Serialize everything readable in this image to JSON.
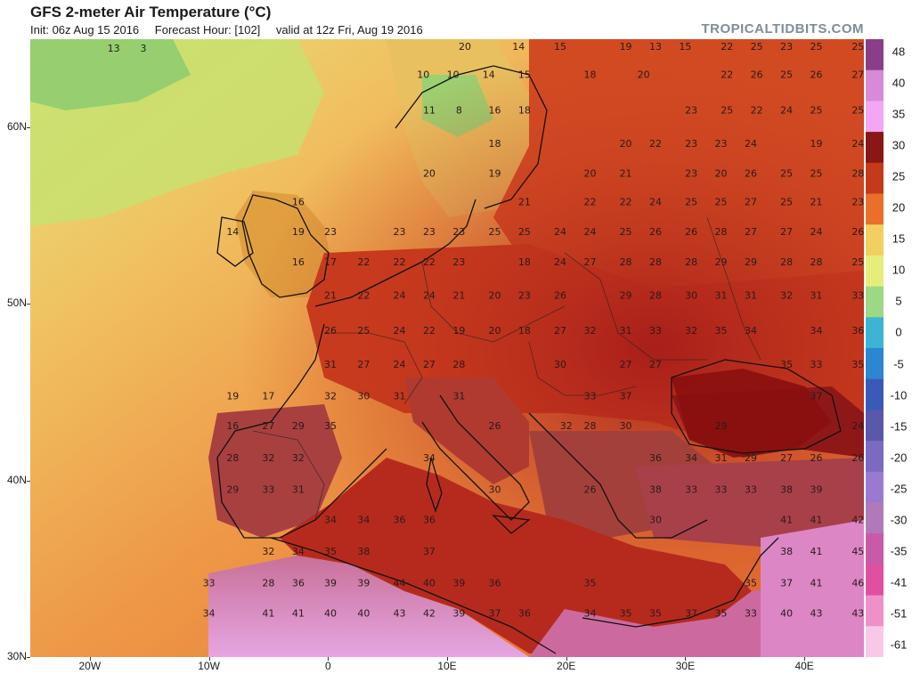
{
  "header": {
    "title": "GFS 2-meter Air Temperature (°C)",
    "init": "Init: 06z Aug 15 2016",
    "forecast_hour": "Forecast Hour: [102]",
    "valid": "valid at 12z Fri, Aug 19 2016",
    "brand": "TROPICALTIDBITS.COM"
  },
  "axes": {
    "lat_labels": [
      "60N",
      "50N",
      "40N",
      "30N"
    ],
    "lon_labels": [
      "20W",
      "10W",
      "0",
      "10E",
      "20E",
      "30E",
      "40E"
    ]
  },
  "colorbar": {
    "labels": [
      "48",
      "40",
      "35",
      "30",
      "25",
      "20",
      "15",
      "10",
      "5",
      "0",
      "-5",
      "-10",
      "-15",
      "-20",
      "-25",
      "-30",
      "-35",
      "-41",
      "-51",
      "-61"
    ],
    "colors": [
      "#8a3e8a",
      "#d88ad8",
      "#f4a6f4",
      "#8b1616",
      "#c43a1a",
      "#e8702a",
      "#f2d060",
      "#e6ee7a",
      "#9ed884",
      "#3cb4d4",
      "#2c86d0",
      "#3a5ab8",
      "#5a58a8",
      "#7a6ac0",
      "#9a7ad0",
      "#b07ab8",
      "#c85aa8",
      "#e050a0",
      "#f090c8",
      "#f8c8e8"
    ]
  },
  "map": {
    "temperature_labels": [
      {
        "t": "13",
        "lon": -18,
        "lat": 64.3
      },
      {
        "t": "3",
        "lon": -15.5,
        "lat": 64.3
      },
      {
        "t": "20",
        "lon": 11.5,
        "lat": 64.4
      },
      {
        "t": "14",
        "lon": 16,
        "lat": 64.4
      },
      {
        "t": "15",
        "lon": 19.5,
        "lat": 64.4
      },
      {
        "t": "19",
        "lon": 25,
        "lat": 64.4
      },
      {
        "t": "13",
        "lon": 27.5,
        "lat": 64.4
      },
      {
        "t": "15",
        "lon": 30,
        "lat": 64.4
      },
      {
        "t": "22",
        "lon": 33.5,
        "lat": 64.4
      },
      {
        "t": "25",
        "lon": 36,
        "lat": 64.4
      },
      {
        "t": "23",
        "lon": 38.5,
        "lat": 64.4
      },
      {
        "t": "25",
        "lon": 41,
        "lat": 64.4
      },
      {
        "t": "25",
        "lon": 44.5,
        "lat": 64.4
      },
      {
        "t": "10",
        "lon": 8,
        "lat": 62.8
      },
      {
        "t": "10",
        "lon": 10.5,
        "lat": 62.8
      },
      {
        "t": "14",
        "lon": 13.5,
        "lat": 62.8
      },
      {
        "t": "15",
        "lon": 16.5,
        "lat": 62.8
      },
      {
        "t": "18",
        "lon": 22,
        "lat": 62.8
      },
      {
        "t": "20",
        "lon": 26.5,
        "lat": 62.8
      },
      {
        "t": "22",
        "lon": 33.5,
        "lat": 62.8
      },
      {
        "t": "26",
        "lon": 36,
        "lat": 62.8
      },
      {
        "t": "25",
        "lon": 38.5,
        "lat": 62.8
      },
      {
        "t": "26",
        "lon": 41,
        "lat": 62.8
      },
      {
        "t": "27",
        "lon": 44.5,
        "lat": 62.8
      },
      {
        "t": "11",
        "lon": 8.5,
        "lat": 60.8
      },
      {
        "t": "8",
        "lon": 11,
        "lat": 60.8
      },
      {
        "t": "16",
        "lon": 14,
        "lat": 60.8
      },
      {
        "t": "18",
        "lon": 16.5,
        "lat": 60.8
      },
      {
        "t": "23",
        "lon": 30.5,
        "lat": 60.8
      },
      {
        "t": "25",
        "lon": 33.5,
        "lat": 60.8
      },
      {
        "t": "22",
        "lon": 36,
        "lat": 60.8
      },
      {
        "t": "24",
        "lon": 38.5,
        "lat": 60.8
      },
      {
        "t": "25",
        "lon": 41,
        "lat": 60.8
      },
      {
        "t": "25",
        "lon": 44.5,
        "lat": 60.8
      },
      {
        "t": "18",
        "lon": 14,
        "lat": 58.9
      },
      {
        "t": "20",
        "lon": 25,
        "lat": 58.9
      },
      {
        "t": "22",
        "lon": 27.5,
        "lat": 58.9
      },
      {
        "t": "23",
        "lon": 30.5,
        "lat": 58.9
      },
      {
        "t": "23",
        "lon": 33,
        "lat": 58.9
      },
      {
        "t": "24",
        "lon": 35.5,
        "lat": 58.9
      },
      {
        "t": "19",
        "lon": 41,
        "lat": 58.9
      },
      {
        "t": "24",
        "lon": 44.5,
        "lat": 58.9
      },
      {
        "t": "20",
        "lon": 8.5,
        "lat": 57.2
      },
      {
        "t": "19",
        "lon": 14,
        "lat": 57.2
      },
      {
        "t": "20",
        "lon": 22,
        "lat": 57.2
      },
      {
        "t": "21",
        "lon": 25,
        "lat": 57.2
      },
      {
        "t": "23",
        "lon": 30.5,
        "lat": 57.2
      },
      {
        "t": "20",
        "lon": 33,
        "lat": 57.2
      },
      {
        "t": "26",
        "lon": 35.5,
        "lat": 57.2
      },
      {
        "t": "25",
        "lon": 38.5,
        "lat": 57.2
      },
      {
        "t": "25",
        "lon": 41,
        "lat": 57.2
      },
      {
        "t": "28",
        "lon": 44.5,
        "lat": 57.2
      },
      {
        "t": "16",
        "lon": -2.5,
        "lat": 55.6
      },
      {
        "t": "21",
        "lon": 16.5,
        "lat": 55.6
      },
      {
        "t": "22",
        "lon": 22,
        "lat": 55.6
      },
      {
        "t": "22",
        "lon": 25,
        "lat": 55.6
      },
      {
        "t": "24",
        "lon": 27.5,
        "lat": 55.6
      },
      {
        "t": "25",
        "lon": 30.5,
        "lat": 55.6
      },
      {
        "t": "25",
        "lon": 33,
        "lat": 55.6
      },
      {
        "t": "27",
        "lon": 35.5,
        "lat": 55.6
      },
      {
        "t": "25",
        "lon": 38.5,
        "lat": 55.6
      },
      {
        "t": "21",
        "lon": 41,
        "lat": 55.6
      },
      {
        "t": "23",
        "lon": 44.5,
        "lat": 55.6
      },
      {
        "t": "14",
        "lon": -8,
        "lat": 53.9
      },
      {
        "t": "19",
        "lon": -2.5,
        "lat": 53.9
      },
      {
        "t": "23",
        "lon": 0.2,
        "lat": 53.9
      },
      {
        "t": "23",
        "lon": 6,
        "lat": 53.9
      },
      {
        "t": "23",
        "lon": 8.5,
        "lat": 53.9
      },
      {
        "t": "23",
        "lon": 11,
        "lat": 53.9
      },
      {
        "t": "25",
        "lon": 14,
        "lat": 53.9
      },
      {
        "t": "25",
        "lon": 16.5,
        "lat": 53.9
      },
      {
        "t": "24",
        "lon": 19.5,
        "lat": 53.9
      },
      {
        "t": "24",
        "lon": 22,
        "lat": 53.9
      },
      {
        "t": "25",
        "lon": 25,
        "lat": 53.9
      },
      {
        "t": "26",
        "lon": 27.5,
        "lat": 53.9
      },
      {
        "t": "26",
        "lon": 30.5,
        "lat": 53.9
      },
      {
        "t": "28",
        "lon": 33,
        "lat": 53.9
      },
      {
        "t": "27",
        "lon": 35.5,
        "lat": 53.9
      },
      {
        "t": "27",
        "lon": 38.5,
        "lat": 53.9
      },
      {
        "t": "24",
        "lon": 41,
        "lat": 53.9
      },
      {
        "t": "26",
        "lon": 44.5,
        "lat": 53.9
      },
      {
        "t": "16",
        "lon": -2.5,
        "lat": 52.2
      },
      {
        "t": "17",
        "lon": 0.2,
        "lat": 52.2
      },
      {
        "t": "22",
        "lon": 3,
        "lat": 52.2
      },
      {
        "t": "22",
        "lon": 6,
        "lat": 52.2
      },
      {
        "t": "22",
        "lon": 8.5,
        "lat": 52.2
      },
      {
        "t": "23",
        "lon": 11,
        "lat": 52.2
      },
      {
        "t": "18",
        "lon": 16.5,
        "lat": 52.2
      },
      {
        "t": "24",
        "lon": 19.5,
        "lat": 52.2
      },
      {
        "t": "27",
        "lon": 22,
        "lat": 52.2
      },
      {
        "t": "28",
        "lon": 25,
        "lat": 52.2
      },
      {
        "t": "28",
        "lon": 27.5,
        "lat": 52.2
      },
      {
        "t": "28",
        "lon": 30.5,
        "lat": 52.2
      },
      {
        "t": "29",
        "lon": 33,
        "lat": 52.2
      },
      {
        "t": "29",
        "lon": 35.5,
        "lat": 52.2
      },
      {
        "t": "28",
        "lon": 38.5,
        "lat": 52.2
      },
      {
        "t": "28",
        "lon": 41,
        "lat": 52.2
      },
      {
        "t": "25",
        "lon": 44.5,
        "lat": 52.2
      },
      {
        "t": "21",
        "lon": 0.2,
        "lat": 50.3
      },
      {
        "t": "22",
        "lon": 3,
        "lat": 50.3
      },
      {
        "t": "24",
        "lon": 6,
        "lat": 50.3
      },
      {
        "t": "24",
        "lon": 8.5,
        "lat": 50.3
      },
      {
        "t": "21",
        "lon": 11,
        "lat": 50.3
      },
      {
        "t": "20",
        "lon": 14,
        "lat": 50.3
      },
      {
        "t": "23",
        "lon": 16.5,
        "lat": 50.3
      },
      {
        "t": "26",
        "lon": 19.5,
        "lat": 50.3
      },
      {
        "t": "29",
        "lon": 25,
        "lat": 50.3
      },
      {
        "t": "28",
        "lon": 27.5,
        "lat": 50.3
      },
      {
        "t": "30",
        "lon": 30.5,
        "lat": 50.3
      },
      {
        "t": "31",
        "lon": 33,
        "lat": 50.3
      },
      {
        "t": "31",
        "lon": 35.5,
        "lat": 50.3
      },
      {
        "t": "32",
        "lon": 38.5,
        "lat": 50.3
      },
      {
        "t": "31",
        "lon": 41,
        "lat": 50.3
      },
      {
        "t": "33",
        "lon": 44.5,
        "lat": 50.3
      },
      {
        "t": "26",
        "lon": 0.2,
        "lat": 48.3
      },
      {
        "t": "25",
        "lon": 3,
        "lat": 48.3
      },
      {
        "t": "24",
        "lon": 6,
        "lat": 48.3
      },
      {
        "t": "22",
        "lon": 8.5,
        "lat": 48.3
      },
      {
        "t": "19",
        "lon": 11,
        "lat": 48.3
      },
      {
        "t": "20",
        "lon": 14,
        "lat": 48.3
      },
      {
        "t": "18",
        "lon": 16.5,
        "lat": 48.3
      },
      {
        "t": "27",
        "lon": 19.5,
        "lat": 48.3
      },
      {
        "t": "32",
        "lon": 22,
        "lat": 48.3
      },
      {
        "t": "31",
        "lon": 25,
        "lat": 48.3
      },
      {
        "t": "33",
        "lon": 27.5,
        "lat": 48.3
      },
      {
        "t": "32",
        "lon": 30.5,
        "lat": 48.3
      },
      {
        "t": "35",
        "lon": 33,
        "lat": 48.3
      },
      {
        "t": "34",
        "lon": 35.5,
        "lat": 48.3
      },
      {
        "t": "34",
        "lon": 41,
        "lat": 48.3
      },
      {
        "t": "36",
        "lon": 44.5,
        "lat": 48.3
      },
      {
        "t": "31",
        "lon": 0.2,
        "lat": 46.4
      },
      {
        "t": "27",
        "lon": 3,
        "lat": 46.4
      },
      {
        "t": "24",
        "lon": 6,
        "lat": 46.4
      },
      {
        "t": "27",
        "lon": 8.5,
        "lat": 46.4
      },
      {
        "t": "28",
        "lon": 11,
        "lat": 46.4
      },
      {
        "t": "30",
        "lon": 19.5,
        "lat": 46.4
      },
      {
        "t": "27",
        "lon": 25,
        "lat": 46.4
      },
      {
        "t": "27",
        "lon": 27.5,
        "lat": 46.4
      },
      {
        "t": "35",
        "lon": 38.5,
        "lat": 46.4
      },
      {
        "t": "33",
        "lon": 41,
        "lat": 46.4
      },
      {
        "t": "35",
        "lon": 44.5,
        "lat": 46.4
      },
      {
        "t": "19",
        "lon": -8,
        "lat": 44.6
      },
      {
        "t": "17",
        "lon": -5,
        "lat": 44.6
      },
      {
        "t": "32",
        "lon": 0.2,
        "lat": 44.6
      },
      {
        "t": "30",
        "lon": 3,
        "lat": 44.6
      },
      {
        "t": "31",
        "lon": 6,
        "lat": 44.6
      },
      {
        "t": "31",
        "lon": 11,
        "lat": 44.6
      },
      {
        "t": "33",
        "lon": 22,
        "lat": 44.6
      },
      {
        "t": "37",
        "lon": 25,
        "lat": 44.6
      },
      {
        "t": "37",
        "lon": 41,
        "lat": 44.6
      },
      {
        "t": "16",
        "lon": -8,
        "lat": 42.9
      },
      {
        "t": "27",
        "lon": -5,
        "lat": 42.9
      },
      {
        "t": "29",
        "lon": -2.5,
        "lat": 42.9
      },
      {
        "t": "35",
        "lon": 0.2,
        "lat": 42.9
      },
      {
        "t": "26",
        "lon": 14,
        "lat": 42.9
      },
      {
        "t": "32",
        "lon": 20,
        "lat": 42.9
      },
      {
        "t": "28",
        "lon": 22,
        "lat": 42.9
      },
      {
        "t": "30",
        "lon": 25,
        "lat": 42.9
      },
      {
        "t": "29",
        "lon": 33,
        "lat": 42.9
      },
      {
        "t": "24",
        "lon": 44.5,
        "lat": 42.9
      },
      {
        "t": "28",
        "lon": -8,
        "lat": 41.1
      },
      {
        "t": "32",
        "lon": -5,
        "lat": 41.1
      },
      {
        "t": "32",
        "lon": -2.5,
        "lat": 41.1
      },
      {
        "t": "34",
        "lon": 8.5,
        "lat": 41.1
      },
      {
        "t": "36",
        "lon": 27.5,
        "lat": 41.1
      },
      {
        "t": "34",
        "lon": 30.5,
        "lat": 41.1
      },
      {
        "t": "31",
        "lon": 33,
        "lat": 41.1
      },
      {
        "t": "29",
        "lon": 35.5,
        "lat": 41.1
      },
      {
        "t": "27",
        "lon": 38.5,
        "lat": 41.1
      },
      {
        "t": "26",
        "lon": 41,
        "lat": 41.1
      },
      {
        "t": "26",
        "lon": 44.5,
        "lat": 41.1
      },
      {
        "t": "29",
        "lon": -8,
        "lat": 39.3
      },
      {
        "t": "33",
        "lon": -5,
        "lat": 39.3
      },
      {
        "t": "31",
        "lon": -2.5,
        "lat": 39.3
      },
      {
        "t": "30",
        "lon": 14,
        "lat": 39.3
      },
      {
        "t": "26",
        "lon": 22,
        "lat": 39.3
      },
      {
        "t": "38",
        "lon": 27.5,
        "lat": 39.3
      },
      {
        "t": "33",
        "lon": 30.5,
        "lat": 39.3
      },
      {
        "t": "33",
        "lon": 33,
        "lat": 39.3
      },
      {
        "t": "33",
        "lon": 35.5,
        "lat": 39.3
      },
      {
        "t": "38",
        "lon": 38.5,
        "lat": 39.3
      },
      {
        "t": "39",
        "lon": 41,
        "lat": 39.3
      },
      {
        "t": "34",
        "lon": 0.2,
        "lat": 37.6
      },
      {
        "t": "34",
        "lon": 3,
        "lat": 37.6
      },
      {
        "t": "36",
        "lon": 6,
        "lat": 37.6
      },
      {
        "t": "36",
        "lon": 8.5,
        "lat": 37.6
      },
      {
        "t": "30",
        "lon": 27.5,
        "lat": 37.6
      },
      {
        "t": "41",
        "lon": 38.5,
        "lat": 37.6
      },
      {
        "t": "41",
        "lon": 41,
        "lat": 37.6
      },
      {
        "t": "42",
        "lon": 44.5,
        "lat": 37.6
      },
      {
        "t": "32",
        "lon": -5,
        "lat": 35.8
      },
      {
        "t": "34",
        "lon": -2.5,
        "lat": 35.8
      },
      {
        "t": "35",
        "lon": 0.2,
        "lat": 35.8
      },
      {
        "t": "38",
        "lon": 3,
        "lat": 35.8
      },
      {
        "t": "37",
        "lon": 8.5,
        "lat": 35.8
      },
      {
        "t": "38",
        "lon": 38.5,
        "lat": 35.8
      },
      {
        "t": "41",
        "lon": 41,
        "lat": 35.8
      },
      {
        "t": "45",
        "lon": 44.5,
        "lat": 35.8
      },
      {
        "t": "33",
        "lon": -10,
        "lat": 34.0
      },
      {
        "t": "28",
        "lon": -5,
        "lat": 34.0
      },
      {
        "t": "36",
        "lon": -2.5,
        "lat": 34.0
      },
      {
        "t": "39",
        "lon": 0.2,
        "lat": 34.0
      },
      {
        "t": "39",
        "lon": 3,
        "lat": 34.0
      },
      {
        "t": "44",
        "lon": 6,
        "lat": 34.0
      },
      {
        "t": "40",
        "lon": 8.5,
        "lat": 34.0
      },
      {
        "t": "39",
        "lon": 11,
        "lat": 34.0
      },
      {
        "t": "36",
        "lon": 14,
        "lat": 34.0
      },
      {
        "t": "35",
        "lon": 22,
        "lat": 34.0
      },
      {
        "t": "35",
        "lon": 35.5,
        "lat": 34.0
      },
      {
        "t": "37",
        "lon": 38.5,
        "lat": 34.0
      },
      {
        "t": "41",
        "lon": 41,
        "lat": 34.0
      },
      {
        "t": "46",
        "lon": 44.5,
        "lat": 34.0
      },
      {
        "t": "34",
        "lon": -10,
        "lat": 32.3
      },
      {
        "t": "41",
        "lon": -5,
        "lat": 32.3
      },
      {
        "t": "41",
        "lon": -2.5,
        "lat": 32.3
      },
      {
        "t": "40",
        "lon": 0.2,
        "lat": 32.3
      },
      {
        "t": "40",
        "lon": 3,
        "lat": 32.3
      },
      {
        "t": "43",
        "lon": 6,
        "lat": 32.3
      },
      {
        "t": "42",
        "lon": 8.5,
        "lat": 32.3
      },
      {
        "t": "39",
        "lon": 11,
        "lat": 32.3
      },
      {
        "t": "37",
        "lon": 14,
        "lat": 32.3
      },
      {
        "t": "36",
        "lon": 16.5,
        "lat": 32.3
      },
      {
        "t": "34",
        "lon": 22,
        "lat": 32.3
      },
      {
        "t": "35",
        "lon": 25,
        "lat": 32.3
      },
      {
        "t": "35",
        "lon": 27.5,
        "lat": 32.3
      },
      {
        "t": "37",
        "lon": 30.5,
        "lat": 32.3
      },
      {
        "t": "35",
        "lon": 33,
        "lat": 32.3
      },
      {
        "t": "33",
        "lon": 35.5,
        "lat": 32.3
      },
      {
        "t": "40",
        "lon": 38.5,
        "lat": 32.3
      },
      {
        "t": "43",
        "lon": 41,
        "lat": 32.3
      },
      {
        "t": "43",
        "lon": 44.5,
        "lat": 32.3
      }
    ]
  }
}
